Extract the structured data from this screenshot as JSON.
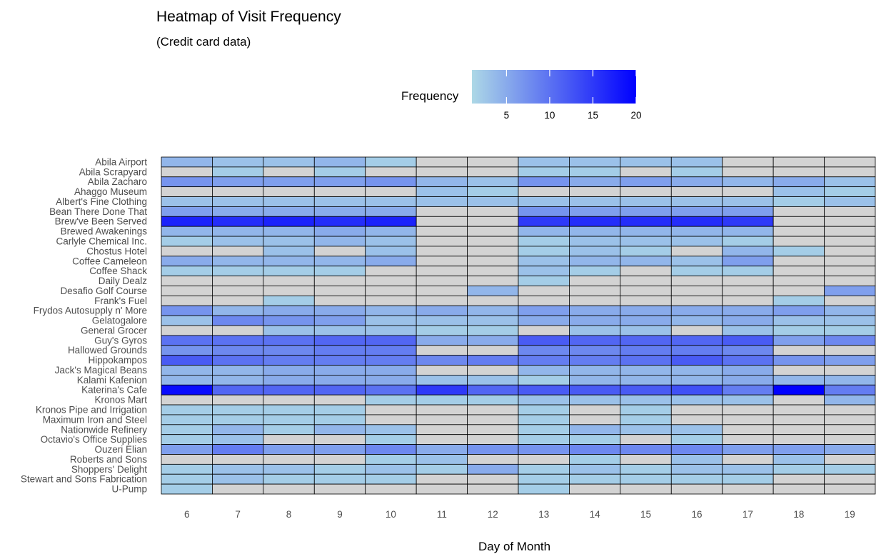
{
  "chart_data": {
    "type": "heatmap",
    "title": "Heatmap of Visit Frequency",
    "subtitle": "(Credit card data)",
    "xlabel": "Day of Month",
    "ylabel": "",
    "legend": {
      "title": "Frequency",
      "position": "top",
      "ticks": [
        5,
        10,
        15,
        20
      ],
      "range": [
        1,
        20
      ],
      "low_color": "#add8e6",
      "high_color": "#0000ff",
      "na_color": "#d3d3d3"
    },
    "x": [
      6,
      7,
      8,
      9,
      10,
      11,
      12,
      13,
      14,
      15,
      16,
      17,
      18,
      19
    ],
    "y": [
      "Abila Airport",
      "Abila Scrapyard",
      "Abila Zacharo",
      "Ahaggo Museum",
      "Albert's Fine Clothing",
      "Bean There Done That",
      "Brew've Been Served",
      "Brewed Awakenings",
      "Carlyle Chemical Inc.",
      "Chostus Hotel",
      "Coffee Cameleon",
      "Coffee Shack",
      "Daily Dealz",
      "Desafio Golf Course",
      "Frank's Fuel",
      "Frydos Autosupply n' More",
      "Gelatogalore",
      "General Grocer",
      "Guy's Gyros",
      "Hallowed Grounds",
      "Hippokampos",
      "Jack's Magical Beans",
      "Kalami Kafenion",
      "Katerina's Cafe",
      "Kronos Mart",
      "Kronos Pipe and Irrigation",
      "Maximum Iron and Steel",
      "Nationwide Refinery",
      "Octavio's Office Supplies",
      "Ouzeri Elian",
      "Roberts and Sons",
      "Shoppers' Delight",
      "Stewart and Sons Fabrication",
      "U-Pump"
    ],
    "values": [
      [
        4,
        3,
        3,
        4,
        2,
        null,
        null,
        3,
        3,
        3,
        3,
        null,
        null,
        null
      ],
      [
        null,
        2,
        null,
        2,
        null,
        null,
        null,
        2,
        2,
        null,
        2,
        null,
        null,
        null
      ],
      [
        7,
        6,
        6,
        6,
        7,
        4,
        3,
        7,
        5,
        6,
        5,
        4,
        5,
        3
      ],
      [
        null,
        null,
        null,
        null,
        null,
        3,
        2,
        null,
        null,
        null,
        null,
        null,
        3,
        2
      ],
      [
        3,
        3,
        3,
        3,
        3,
        3,
        3,
        3,
        3,
        3,
        3,
        3,
        2,
        3
      ],
      [
        6,
        5,
        5,
        5,
        5,
        null,
        null,
        7,
        6,
        6,
        6,
        6,
        null,
        null
      ],
      [
        17,
        16,
        17,
        16,
        17,
        null,
        null,
        15,
        16,
        16,
        16,
        15,
        null,
        null
      ],
      [
        4,
        4,
        4,
        5,
        4,
        null,
        null,
        4,
        4,
        4,
        4,
        4,
        null,
        null
      ],
      [
        2,
        3,
        3,
        4,
        3,
        null,
        null,
        2,
        3,
        3,
        3,
        2,
        null,
        null
      ],
      [
        null,
        null,
        3,
        null,
        3,
        null,
        null,
        2,
        3,
        2,
        null,
        4,
        2,
        null
      ],
      [
        5,
        4,
        4,
        4,
        5,
        null,
        null,
        3,
        4,
        4,
        3,
        6,
        null,
        null
      ],
      [
        2,
        2,
        2,
        2,
        null,
        null,
        null,
        3,
        2,
        null,
        2,
        2,
        null,
        null
      ],
      [
        null,
        null,
        null,
        null,
        null,
        null,
        null,
        2,
        null,
        null,
        null,
        null,
        null,
        null
      ],
      [
        null,
        null,
        null,
        null,
        null,
        null,
        4,
        null,
        null,
        null,
        null,
        null,
        null,
        6
      ],
      [
        null,
        null,
        2,
        null,
        null,
        null,
        null,
        null,
        null,
        null,
        null,
        null,
        2,
        null
      ],
      [
        7,
        4,
        5,
        5,
        4,
        5,
        4,
        6,
        5,
        5,
        5,
        5,
        6,
        4
      ],
      [
        3,
        8,
        7,
        6,
        3,
        3,
        3,
        5,
        5,
        5,
        4,
        5,
        3,
        3
      ],
      [
        null,
        null,
        3,
        3,
        3,
        2,
        2,
        null,
        3,
        3,
        null,
        3,
        2,
        2
      ],
      [
        10,
        10,
        10,
        11,
        11,
        5,
        5,
        12,
        11,
        11,
        11,
        12,
        6,
        8
      ],
      [
        7,
        8,
        8,
        9,
        9,
        null,
        null,
        8,
        8,
        9,
        9,
        8,
        null,
        null
      ],
      [
        12,
        10,
        9,
        9,
        9,
        8,
        9,
        9,
        9,
        10,
        12,
        10,
        7,
        6
      ],
      [
        4,
        4,
        5,
        5,
        5,
        null,
        null,
        4,
        4,
        4,
        4,
        5,
        null,
        null
      ],
      [
        4,
        4,
        5,
        5,
        5,
        3,
        3,
        2,
        4,
        4,
        4,
        5,
        4,
        4
      ],
      [
        19,
        11,
        11,
        11,
        10,
        15,
        11,
        12,
        12,
        12,
        13,
        9,
        20,
        9
      ],
      [
        null,
        null,
        null,
        null,
        2,
        2,
        2,
        3,
        3,
        3,
        3,
        3,
        null,
        4
      ],
      [
        2,
        2,
        2,
        2,
        null,
        null,
        null,
        2,
        null,
        2,
        null,
        null,
        null,
        null
      ],
      [
        2,
        2,
        2,
        2,
        null,
        null,
        null,
        2,
        null,
        2,
        null,
        null,
        null,
        null
      ],
      [
        2,
        4,
        2,
        4,
        3,
        null,
        null,
        2,
        4,
        3,
        3,
        null,
        null,
        null
      ],
      [
        2,
        3,
        null,
        null,
        2,
        null,
        null,
        2,
        2,
        null,
        2,
        null,
        null,
        null
      ],
      [
        6,
        9,
        6,
        6,
        8,
        5,
        7,
        7,
        8,
        8,
        8,
        6,
        6,
        5
      ],
      [
        null,
        null,
        null,
        null,
        2,
        3,
        null,
        null,
        2,
        null,
        3,
        null,
        3,
        null
      ],
      [
        2,
        3,
        3,
        2,
        3,
        2,
        5,
        2,
        3,
        2,
        3,
        3,
        2,
        2
      ],
      [
        2,
        3,
        2,
        2,
        2,
        null,
        null,
        2,
        2,
        2,
        2,
        2,
        null,
        null
      ],
      [
        2,
        null,
        null,
        null,
        null,
        null,
        null,
        2,
        null,
        null,
        null,
        null,
        null,
        null
      ]
    ]
  }
}
